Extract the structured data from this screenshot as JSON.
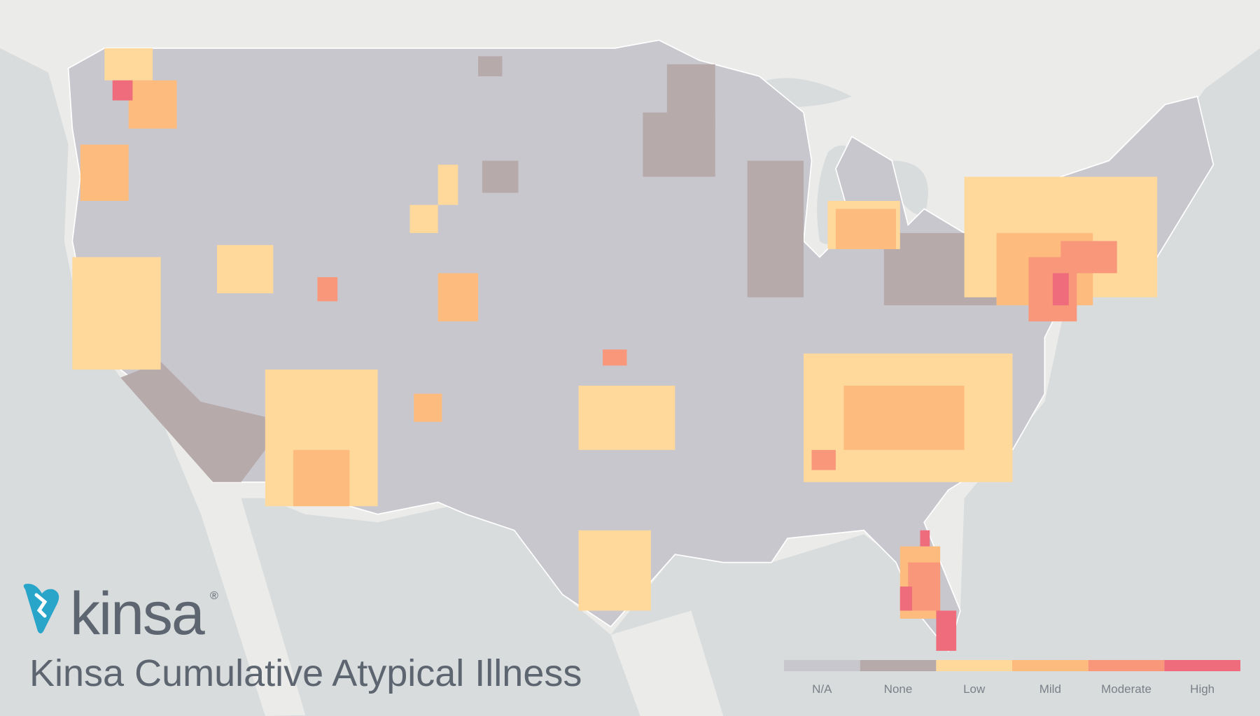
{
  "logo": {
    "text": "kinsa",
    "mark": "®"
  },
  "title": "Kinsa Cumulative Atypical Illness",
  "legend": {
    "items": [
      {
        "label": "N/A",
        "color": "#c9c7ce"
      },
      {
        "label": "None",
        "color": "#b6aaab"
      },
      {
        "label": "Low",
        "color": "#fed99b"
      },
      {
        "label": "Mild",
        "color": "#fdbc7d"
      },
      {
        "label": "Moderate",
        "color": "#f9977b"
      },
      {
        "label": "High",
        "color": "#ee6c7b"
      }
    ]
  }
}
